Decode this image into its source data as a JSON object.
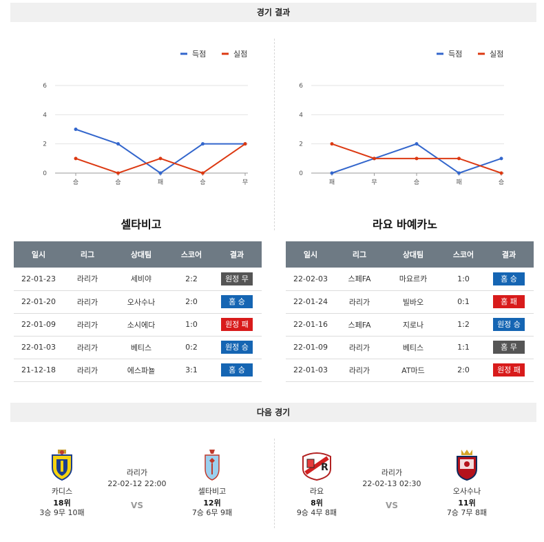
{
  "headers": {
    "results": "경기 결과",
    "next": "다음 경기"
  },
  "colors": {
    "scored": "#3366cc",
    "conceded": "#dc3912",
    "win": "#1565b3",
    "lose": "#d81b1b",
    "draw": "#555555",
    "table_header": "#6e7a84"
  },
  "legend": {
    "scored": "득점",
    "conceded": "실점"
  },
  "chart_data": [
    {
      "type": "line",
      "categories": [
        "승",
        "승",
        "패",
        "승",
        "무"
      ],
      "series": [
        {
          "name": "득점",
          "values": [
            3,
            2,
            0,
            2,
            2
          ]
        },
        {
          "name": "실점",
          "values": [
            1,
            0,
            1,
            0,
            2
          ]
        }
      ],
      "yticks": [
        "0",
        "2",
        "4",
        "6"
      ],
      "ylim": [
        0,
        6
      ],
      "grid": true,
      "legend_position": "top-right"
    },
    {
      "type": "line",
      "categories": [
        "패",
        "무",
        "승",
        "패",
        "승"
      ],
      "series": [
        {
          "name": "득점",
          "values": [
            0,
            1,
            2,
            0,
            1
          ]
        },
        {
          "name": "실점",
          "values": [
            2,
            1,
            1,
            1,
            0
          ]
        }
      ],
      "yticks": [
        "0",
        "2",
        "4",
        "6"
      ],
      "ylim": [
        0,
        6
      ],
      "grid": true,
      "legend_position": "top-right"
    }
  ],
  "table_headers": [
    "일시",
    "리그",
    "상대팀",
    "스코어",
    "결과"
  ],
  "left_team": {
    "title": "셀타비고",
    "rows": [
      {
        "date": "22-01-23",
        "league": "라리가",
        "opponent": "세비야",
        "score": "2:2",
        "result": "원정 무",
        "type": "draw"
      },
      {
        "date": "22-01-20",
        "league": "라리가",
        "opponent": "오사수나",
        "score": "2:0",
        "result": "홈 승",
        "type": "win"
      },
      {
        "date": "22-01-09",
        "league": "라리가",
        "opponent": "소시에다",
        "score": "1:0",
        "result": "원정 패",
        "type": "lose"
      },
      {
        "date": "22-01-03",
        "league": "라리가",
        "opponent": "베티스",
        "score": "0:2",
        "result": "원정 승",
        "type": "win"
      },
      {
        "date": "21-12-18",
        "league": "라리가",
        "opponent": "에스파뇰",
        "score": "3:1",
        "result": "홈 승",
        "type": "win"
      }
    ]
  },
  "right_team": {
    "title": "라요 바예카노",
    "rows": [
      {
        "date": "22-02-03",
        "league": "스페FA",
        "opponent": "마요르카",
        "score": "1:0",
        "result": "홈 승",
        "type": "win"
      },
      {
        "date": "22-01-24",
        "league": "라리가",
        "opponent": "빌바오",
        "score": "0:1",
        "result": "홈 패",
        "type": "lose"
      },
      {
        "date": "22-01-16",
        "league": "스페FA",
        "opponent": "지로나",
        "score": "1:2",
        "result": "원정 승",
        "type": "win"
      },
      {
        "date": "22-01-09",
        "league": "라리가",
        "opponent": "베티스",
        "score": "1:1",
        "result": "홈 무",
        "type": "draw"
      },
      {
        "date": "22-01-03",
        "league": "라리가",
        "opponent": "AT마드",
        "score": "2:0",
        "result": "원정 패",
        "type": "lose"
      }
    ]
  },
  "next_matches": [
    {
      "league": "라리가",
      "datetime": "22-02-12 22:00",
      "vs": "VS",
      "home": {
        "name": "카디스",
        "rank": "18위",
        "record": "3승 9무 10패",
        "logo": "cadiz-logo"
      },
      "away": {
        "name": "셀타비고",
        "rank": "12위",
        "record": "7승 6무 9패",
        "logo": "celta-logo"
      }
    },
    {
      "league": "라리가",
      "datetime": "22-02-13 02:30",
      "vs": "VS",
      "home": {
        "name": "라요",
        "rank": "8위",
        "record": "9승 4무 8패",
        "logo": "rayo-logo"
      },
      "away": {
        "name": "오사수나",
        "rank": "11위",
        "record": "7승 7무 8패",
        "logo": "osasuna-logo"
      }
    }
  ]
}
